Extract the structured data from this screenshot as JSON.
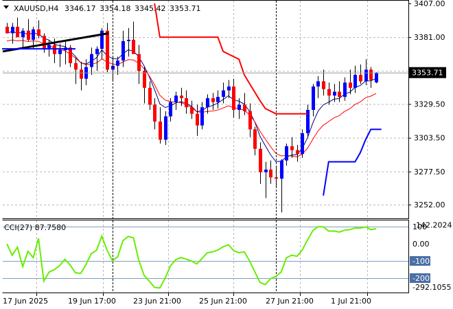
{
  "header": {
    "symbol": "XAUUSD,H4",
    "ohlc": [
      "3346.17",
      "3354.18",
      "3345.42",
      "3353.71"
    ]
  },
  "cci_header": {
    "label": "CCI(27) 87.7580"
  },
  "price_scale": {
    "ticks": [
      "3407.00",
      "3381.00",
      "3355.00",
      "3329.50",
      "3303.50",
      "3277.50",
      "3252.00"
    ],
    "current": "3353.71"
  },
  "cci_scale": {
    "ticks": [
      "142.2024",
      "100",
      "0.00",
      "-100",
      "-200",
      "-292.1055"
    ]
  },
  "time_axis": {
    "labels": [
      "17 Jun 2025",
      "19 Jun 17:00",
      "23 Jun 21:00",
      "25 Jun 21:00",
      "27 Jun 21:00",
      "1 Jul 21:00"
    ]
  },
  "colors": {
    "bull": "#0000ff",
    "bear": "#ff0000",
    "red_line": "#ff0000",
    "cci": "#66ee00",
    "grid": "#b8b8b8",
    "current_box": "#000000"
  },
  "chart_data": [
    {
      "type": "candlestick",
      "title": "XAUUSD,H4",
      "ylim": [
        3242,
        3407
      ],
      "yticks": [
        3407.0,
        3381.0,
        3355.0,
        3329.5,
        3303.5,
        3277.5,
        3252.0
      ],
      "current_price": 3353.71,
      "x_labels": [
        "17 Jun 2025",
        "19 Jun 17:00",
        "23 Jun 21:00",
        "25 Jun 21:00",
        "27 Jun 21:00",
        "1 Jul 21:00"
      ],
      "candles": [
        [
          3389,
          3392,
          3384,
          3384
        ],
        [
          3384,
          3392,
          3376,
          3389
        ],
        [
          3389,
          3396,
          3381,
          3381
        ],
        [
          3381,
          3388,
          3373,
          3386
        ],
        [
          3386,
          3395,
          3378,
          3379
        ],
        [
          3379,
          3389,
          3372,
          3387
        ],
        [
          3387,
          3394,
          3380,
          3382
        ],
        [
          3382,
          3384,
          3369,
          3372
        ],
        [
          3372,
          3379,
          3366,
          3375
        ],
        [
          3375,
          3380,
          3361,
          3368
        ],
        [
          3368,
          3376,
          3358,
          3371
        ],
        [
          3371,
          3378,
          3360,
          3373
        ],
        [
          3373,
          3375,
          3358,
          3361
        ],
        [
          3361,
          3365,
          3345,
          3356
        ],
        [
          3356,
          3362,
          3340,
          3349
        ],
        [
          3349,
          3364,
          3344,
          3358
        ],
        [
          3358,
          3373,
          3352,
          3368
        ],
        [
          3368,
          3374,
          3355,
          3372
        ],
        [
          3372,
          3388,
          3364,
          3386
        ],
        [
          3386,
          3392,
          3354,
          3356
        ],
        [
          3356,
          3366,
          3348,
          3359
        ],
        [
          3359,
          3366,
          3352,
          3363
        ],
        [
          3363,
          3386,
          3358,
          3378
        ],
        [
          3378,
          3388,
          3366,
          3379
        ],
        [
          3379,
          3393,
          3369,
          3368
        ],
        [
          3368,
          3375,
          3345,
          3355
        ],
        [
          3355,
          3358,
          3330,
          3342
        ],
        [
          3342,
          3347,
          3325,
          3329
        ],
        [
          3329,
          3334,
          3310,
          3316
        ],
        [
          3316,
          3327,
          3299,
          3302
        ],
        [
          3302,
          3324,
          3298,
          3320
        ],
        [
          3320,
          3334,
          3316,
          3331
        ],
        [
          3331,
          3339,
          3325,
          3336
        ],
        [
          3336,
          3342,
          3328,
          3334
        ],
        [
          3334,
          3340,
          3322,
          3327
        ],
        [
          3327,
          3332,
          3318,
          3322
        ],
        [
          3322,
          3329,
          3305,
          3313
        ],
        [
          3313,
          3331,
          3310,
          3327
        ],
        [
          3327,
          3337,
          3322,
          3334
        ],
        [
          3334,
          3338,
          3325,
          3331
        ],
        [
          3331,
          3340,
          3326,
          3335
        ],
        [
          3335,
          3346,
          3330,
          3340
        ],
        [
          3340,
          3348,
          3334,
          3343
        ],
        [
          3343,
          3349,
          3319,
          3325
        ],
        [
          3325,
          3334,
          3318,
          3329
        ],
        [
          3329,
          3338,
          3321,
          3324
        ],
        [
          3324,
          3330,
          3304,
          3310
        ],
        [
          3310,
          3312,
          3290,
          3295
        ],
        [
          3295,
          3300,
          3268,
          3277
        ],
        [
          3277,
          3285,
          3257,
          3279
        ],
        [
          3279,
          3286,
          3268,
          3273
        ],
        [
          3273,
          3281,
          3265,
          3272
        ],
        [
          3272,
          3287,
          3246,
          3286
        ],
        [
          3286,
          3299,
          3282,
          3297
        ],
        [
          3297,
          3304,
          3288,
          3294
        ],
        [
          3294,
          3298,
          3285,
          3291
        ],
        [
          3291,
          3310,
          3288,
          3307
        ],
        [
          3307,
          3329,
          3304,
          3325
        ],
        [
          3325,
          3345,
          3320,
          3343
        ],
        [
          3343,
          3351,
          3334,
          3347
        ],
        [
          3347,
          3356,
          3336,
          3341
        ],
        [
          3341,
          3346,
          3329,
          3336
        ],
        [
          3336,
          3345,
          3331,
          3339
        ],
        [
          3339,
          3347,
          3331,
          3335
        ],
        [
          3335,
          3350,
          3332,
          3346
        ],
        [
          3346,
          3356,
          3337,
          3342
        ],
        [
          3342,
          3359,
          3338,
          3352
        ],
        [
          3352,
          3360,
          3345,
          3347
        ],
        [
          3347,
          3364,
          3344,
          3356
        ],
        [
          3356,
          3358,
          3342,
          3348
        ],
        [
          3346.17,
          3354.18,
          3345.42,
          3353.71
        ]
      ],
      "trendline": [
        [
          0,
          3370
        ],
        [
          19,
          3384
        ]
      ],
      "horizontal_line": 3372,
      "vertical_markers": [
        20,
        51
      ],
      "series": [
        {
          "kind": "step",
          "points": [
            [
              28,
              3407
            ],
            [
              29,
              3381
            ],
            [
              40,
              3381
            ],
            [
              41,
              3370
            ],
            [
              44,
              3364
            ],
            [
              45,
              3352
            ],
            [
              48,
              3332
            ],
            [
              49,
              3326
            ],
            [
              51,
              3322
            ],
            [
              57,
              3322
            ]
          ]
        },
        {
          "kind": "step",
          "points": [
            [
              60,
              3259
            ],
            [
              61,
              3285
            ],
            [
              66,
              3285
            ],
            [
              67,
              3292
            ],
            [
              68,
              3302
            ],
            [
              69,
              3310
            ],
            [
              71,
              3310
            ]
          ]
        }
      ]
    },
    {
      "type": "line",
      "title": "CCI(27) 87.7580",
      "ylim": [
        -292.1055,
        142.2024
      ],
      "levels": [
        100,
        -100,
        -200
      ],
      "yticks": [
        142.2024,
        0.0,
        -292.1055
      ],
      "last_value": 87.758
    }
  ]
}
